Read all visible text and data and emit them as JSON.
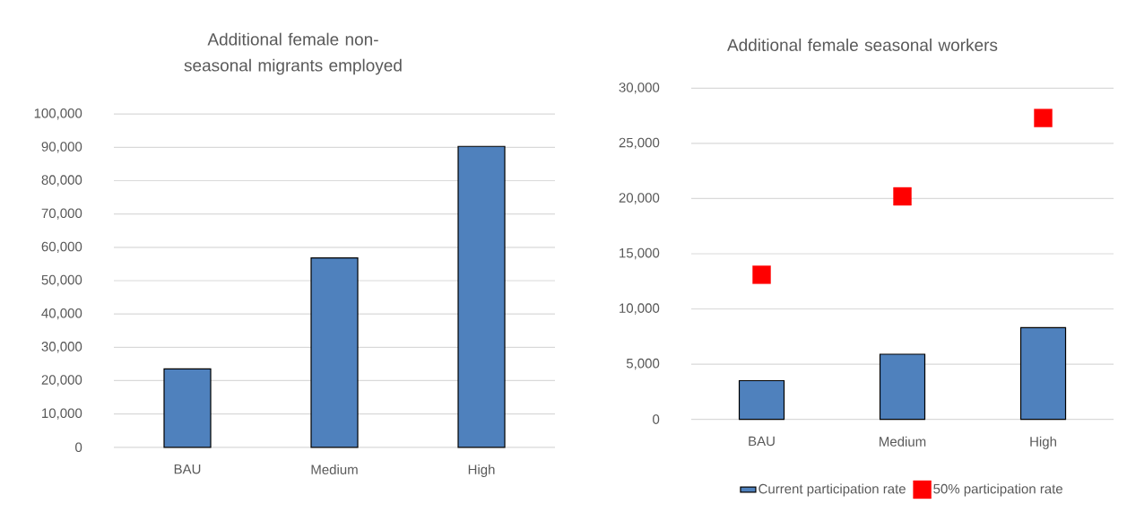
{
  "chart_data": [
    {
      "type": "bar",
      "title": "Additional female non-seasonal migrants employed",
      "categories": [
        "BAU",
        "Medium",
        "High"
      ],
      "values": [
        23500,
        56800,
        90300
      ],
      "color": "#4f81bd",
      "ylim": [
        0,
        100000
      ],
      "yticks": [
        0,
        {
          "value": 10000,
          "label": "10,000"
        },
        {
          "value": 20000,
          "label": "20,000"
        },
        {
          "value": 30000,
          "label": "30,000"
        },
        {
          "value": 40000,
          "label": "40,000"
        },
        {
          "value": 50000,
          "label": "50,000"
        },
        {
          "value": 60000,
          "label": "60,000"
        },
        {
          "value": 70000,
          "label": "70,000"
        },
        {
          "value": 80000,
          "label": "80,000"
        },
        {
          "value": 90000,
          "label": "90,000"
        },
        {
          "value": 100000,
          "label": "100,000"
        }
      ],
      "grid": "y"
    },
    {
      "type": "bar",
      "title": "Additional female seasonal workers",
      "categories": [
        "BAU",
        "Medium",
        "High"
      ],
      "series": [
        {
          "name": "Current participation rate",
          "type": "bar",
          "color": "#4f81bd",
          "values": [
            3500,
            5900,
            8300
          ]
        },
        {
          "name": "50% participation rate",
          "type": "scatter",
          "marker": "square",
          "color": "#ff0000",
          "values": [
            13100,
            20200,
            27300
          ]
        }
      ],
      "ylim": [
        0,
        30000
      ],
      "yticks": [
        0,
        {
          "value": 5000,
          "label": "5,000"
        },
        {
          "value": 10000,
          "label": "10,000"
        },
        {
          "value": 15000,
          "label": "15,000"
        },
        {
          "value": 20000,
          "label": "20,000"
        },
        {
          "value": 25000,
          "label": "25,000"
        },
        {
          "value": 30000,
          "label": "30,000"
        }
      ],
      "grid": "y",
      "legend": "bottom"
    }
  ]
}
